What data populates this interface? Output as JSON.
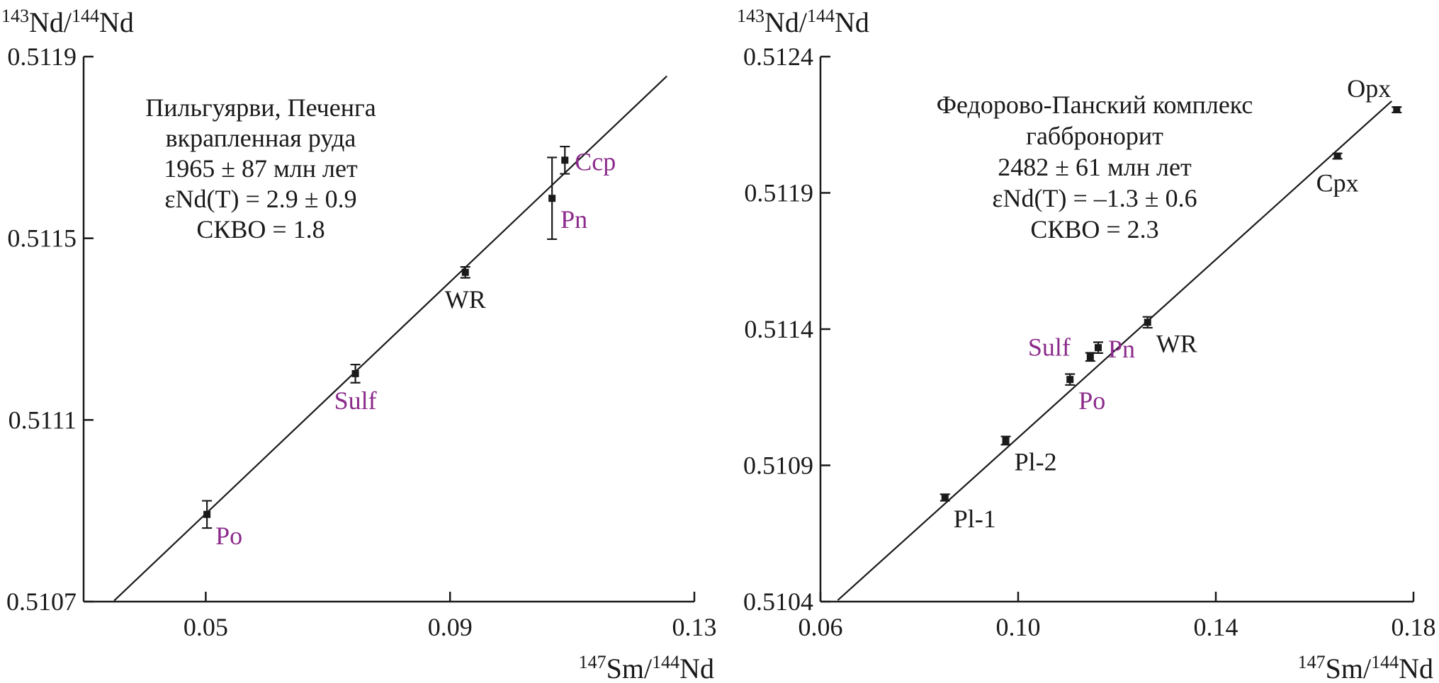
{
  "colors": {
    "ink": "#1a1a1a",
    "sulfide": "#8b2a8b"
  },
  "chart_data": [
    {
      "type": "scatter",
      "panel": "left",
      "ylabel": {
        "sup1": "143",
        "a": "Nd/",
        "sup2": "144",
        "b": "Nd"
      },
      "xlabel": {
        "sup1": "147",
        "a": "Sm/",
        "sup2": "144",
        "b": "Nd"
      },
      "xlim": [
        0.03,
        0.13
      ],
      "ylim": [
        0.5107,
        0.5119
      ],
      "xticks": [
        0.05,
        0.09,
        0.13
      ],
      "xtick_labels": [
        "0.05",
        "0.09",
        "0.13"
      ],
      "yticks": [
        0.5107,
        0.5111,
        0.5115,
        0.5119
      ],
      "ytick_labels": [
        "0.5107",
        "0.5111",
        "0.5115",
        "0.5119"
      ],
      "annotation": [
        "Пильгуярви, Печенга",
        "вкрапленная руда",
        "1965 ± 87 млн лет",
        "εNd(T) = 2.9 ± 0.9",
        "СКВО = 1.8"
      ],
      "isochron": {
        "x": [
          0.035,
          0.1255
        ],
        "y": [
          0.510702,
          0.511857
        ]
      },
      "points": [
        {
          "label": "Po",
          "x": 0.0502,
          "y": 0.510892,
          "err": 3e-05,
          "label_color": "sulfide",
          "label_pos": "below-right"
        },
        {
          "label": "Sulf",
          "x": 0.0745,
          "y": 0.511202,
          "err": 2e-05,
          "label_color": "sulfide",
          "label_pos": "below"
        },
        {
          "label": "WR",
          "x": 0.0925,
          "y": 0.511425,
          "err": 1.2e-05,
          "label_color": "ink",
          "label_pos": "below"
        },
        {
          "label": "Pn",
          "x": 0.1067,
          "y": 0.511588,
          "err": 9e-05,
          "label_color": "sulfide",
          "label_pos": "below-right"
        },
        {
          "label": "Ccp",
          "x": 0.1088,
          "y": 0.511672,
          "err": 3e-05,
          "label_color": "sulfide",
          "label_pos": "right"
        }
      ]
    },
    {
      "type": "scatter",
      "panel": "right",
      "ylabel": {
        "sup1": "143",
        "a": "Nd/",
        "sup2": "144",
        "b": "Nd"
      },
      "xlabel": {
        "sup1": "147",
        "a": "Sm/",
        "sup2": "144",
        "b": "Nd"
      },
      "xlim": [
        0.06,
        0.18
      ],
      "ylim": [
        0.5104,
        0.5124
      ],
      "xticks": [
        0.06,
        0.1,
        0.14,
        0.18
      ],
      "xtick_labels": [
        "0.06",
        "0.10",
        "0.14",
        "0.18"
      ],
      "yticks": [
        0.5104,
        0.5109,
        0.5114,
        0.5119,
        0.5124
      ],
      "ytick_labels": [
        "0.5104",
        "0.5109",
        "0.5114",
        "0.5119",
        "0.5124"
      ],
      "annotation": [
        "Федорово-Панский комплекс",
        "габбронорит",
        "2482 ± 61 млн лет",
        "εNd(T) = –1.3 ± 0.6",
        "СКВО = 2.3"
      ],
      "isochron": {
        "x": [
          0.0635,
          0.1756
        ],
        "y": [
          0.510405,
          0.512237
        ]
      },
      "points": [
        {
          "label": "Pl-1",
          "x": 0.0852,
          "y": 0.510782,
          "err": 1.2e-05,
          "label_color": "ink",
          "label_pos": "below-right"
        },
        {
          "label": "Pl-2",
          "x": 0.0975,
          "y": 0.510991,
          "err": 1.5e-05,
          "label_color": "ink",
          "label_pos": "below-right"
        },
        {
          "label": "Po",
          "x": 0.1105,
          "y": 0.511215,
          "err": 2e-05,
          "label_color": "sulfide",
          "label_pos": "below-right"
        },
        {
          "label": "Sulf",
          "x": 0.1146,
          "y": 0.511298,
          "err": 1.5e-05,
          "label_color": "sulfide",
          "label_pos": "left"
        },
        {
          "label": "Pn",
          "x": 0.1162,
          "y": 0.511332,
          "err": 2e-05,
          "label_color": "sulfide",
          "label_pos": "right"
        },
        {
          "label": "WR",
          "x": 0.1262,
          "y": 0.511425,
          "err": 2e-05,
          "label_color": "ink",
          "label_pos": "below-right"
        },
        {
          "label": "Cpx",
          "x": 0.1646,
          "y": 0.512035,
          "err": 1e-05,
          "label_color": "ink",
          "label_pos": "below"
        },
        {
          "label": "Opx",
          "x": 0.1766,
          "y": 0.512205,
          "err": 1e-05,
          "label_color": "ink",
          "label_pos": "above-left"
        }
      ]
    }
  ]
}
